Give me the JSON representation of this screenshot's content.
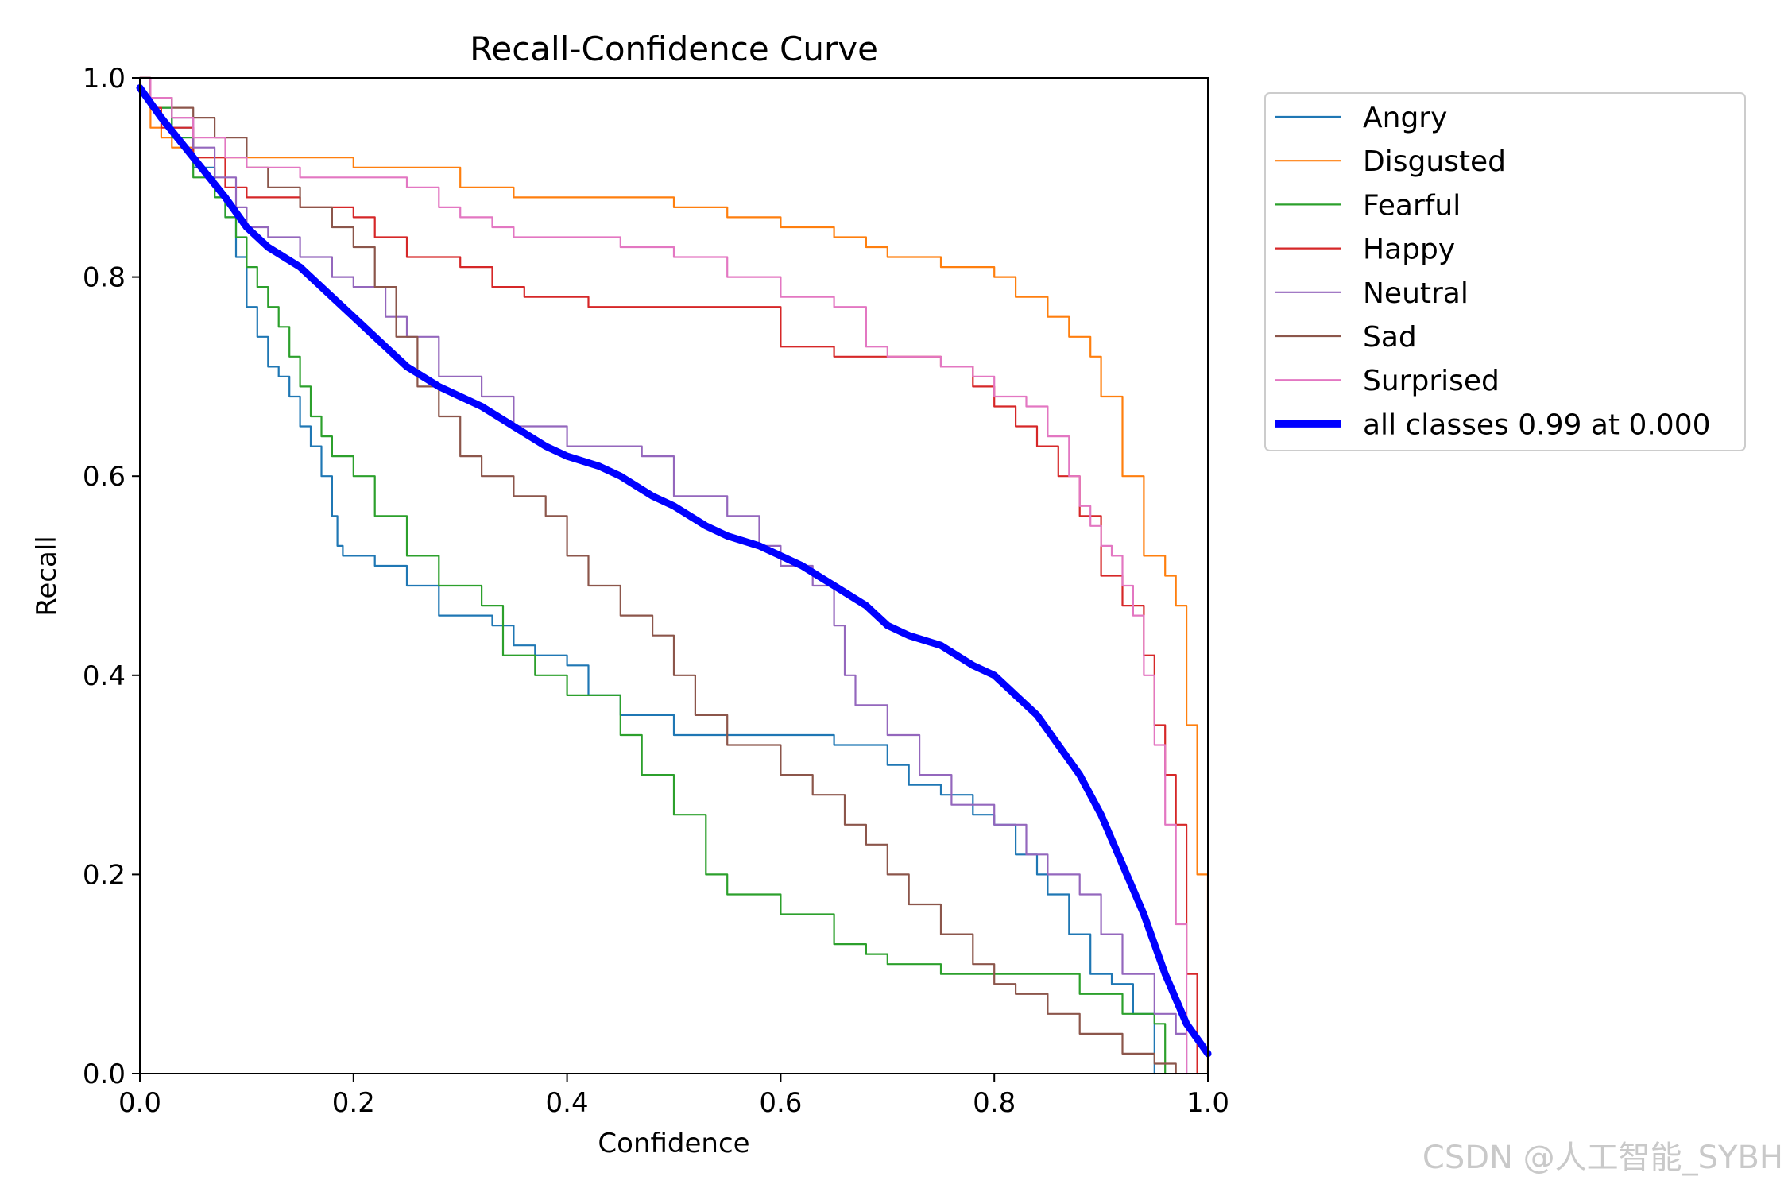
{
  "chart_data": {
    "type": "line",
    "title": "Recall-Confidence Curve",
    "xlabel": "Confidence",
    "ylabel": "Recall",
    "xlim": [
      0.0,
      1.0
    ],
    "ylim": [
      0.0,
      1.0
    ],
    "xticks": [
      "0.0",
      "0.2",
      "0.4",
      "0.6",
      "0.8",
      "1.0"
    ],
    "yticks": [
      "0.0",
      "0.2",
      "0.4",
      "0.6",
      "0.8",
      "1.0"
    ],
    "grid": false,
    "legend_position": "outside-right-top",
    "series": [
      {
        "name": "Angry",
        "color": "#1f77b4",
        "x": [
          0.0,
          0.01,
          0.03,
          0.05,
          0.07,
          0.08,
          0.09,
          0.1,
          0.11,
          0.12,
          0.13,
          0.14,
          0.15,
          0.16,
          0.17,
          0.18,
          0.185,
          0.19,
          0.2,
          0.22,
          0.25,
          0.28,
          0.33,
          0.35,
          0.37,
          0.4,
          0.42,
          0.45,
          0.5,
          0.6,
          0.65,
          0.7,
          0.72,
          0.75,
          0.78,
          0.8,
          0.82,
          0.84,
          0.85,
          0.87,
          0.89,
          0.91,
          0.93,
          0.95
        ],
        "y": [
          1.0,
          0.97,
          0.95,
          0.91,
          0.88,
          0.86,
          0.82,
          0.77,
          0.74,
          0.71,
          0.7,
          0.68,
          0.65,
          0.63,
          0.6,
          0.56,
          0.53,
          0.52,
          0.52,
          0.51,
          0.49,
          0.46,
          0.45,
          0.43,
          0.42,
          0.41,
          0.38,
          0.36,
          0.34,
          0.34,
          0.33,
          0.31,
          0.29,
          0.28,
          0.26,
          0.25,
          0.22,
          0.2,
          0.18,
          0.14,
          0.1,
          0.09,
          0.06,
          0.0
        ]
      },
      {
        "name": "Disgusted",
        "color": "#ff7f0e",
        "x": [
          0.0,
          0.01,
          0.02,
          0.03,
          0.05,
          0.1,
          0.17,
          0.2,
          0.27,
          0.3,
          0.35,
          0.45,
          0.5,
          0.55,
          0.6,
          0.65,
          0.68,
          0.7,
          0.75,
          0.8,
          0.82,
          0.85,
          0.87,
          0.89,
          0.9,
          0.92,
          0.94,
          0.96,
          0.97,
          0.98,
          0.99,
          1.0
        ],
        "y": [
          1.0,
          0.95,
          0.94,
          0.93,
          0.92,
          0.92,
          0.92,
          0.91,
          0.91,
          0.89,
          0.88,
          0.88,
          0.87,
          0.86,
          0.85,
          0.84,
          0.83,
          0.82,
          0.81,
          0.8,
          0.78,
          0.76,
          0.74,
          0.72,
          0.68,
          0.6,
          0.52,
          0.5,
          0.47,
          0.35,
          0.2,
          0.0
        ]
      },
      {
        "name": "Fearful",
        "color": "#2ca02c",
        "x": [
          0.0,
          0.01,
          0.03,
          0.05,
          0.07,
          0.08,
          0.09,
          0.1,
          0.11,
          0.12,
          0.13,
          0.14,
          0.15,
          0.16,
          0.17,
          0.18,
          0.2,
          0.22,
          0.25,
          0.28,
          0.32,
          0.34,
          0.37,
          0.4,
          0.45,
          0.47,
          0.5,
          0.53,
          0.55,
          0.6,
          0.65,
          0.68,
          0.7,
          0.75,
          0.8,
          0.85,
          0.88,
          0.92,
          0.95,
          0.96
        ],
        "y": [
          1.0,
          0.97,
          0.94,
          0.9,
          0.88,
          0.86,
          0.84,
          0.81,
          0.79,
          0.77,
          0.75,
          0.72,
          0.69,
          0.66,
          0.64,
          0.62,
          0.6,
          0.56,
          0.52,
          0.49,
          0.47,
          0.42,
          0.4,
          0.38,
          0.34,
          0.3,
          0.26,
          0.2,
          0.18,
          0.16,
          0.13,
          0.12,
          0.11,
          0.1,
          0.1,
          0.1,
          0.08,
          0.06,
          0.05,
          0.0
        ]
      },
      {
        "name": "Happy",
        "color": "#d62728",
        "x": [
          0.0,
          0.01,
          0.02,
          0.05,
          0.08,
          0.1,
          0.15,
          0.2,
          0.22,
          0.25,
          0.3,
          0.33,
          0.36,
          0.42,
          0.55,
          0.6,
          0.65,
          0.7,
          0.75,
          0.78,
          0.8,
          0.82,
          0.84,
          0.86,
          0.88,
          0.9,
          0.92,
          0.94,
          0.95,
          0.96,
          0.97,
          0.98,
          0.99
        ],
        "y": [
          1.0,
          0.97,
          0.95,
          0.92,
          0.89,
          0.88,
          0.87,
          0.86,
          0.84,
          0.82,
          0.81,
          0.79,
          0.78,
          0.77,
          0.77,
          0.73,
          0.72,
          0.72,
          0.71,
          0.69,
          0.67,
          0.65,
          0.63,
          0.6,
          0.56,
          0.5,
          0.47,
          0.42,
          0.35,
          0.3,
          0.25,
          0.1,
          0.0
        ]
      },
      {
        "name": "Neutral",
        "color": "#9467bd",
        "x": [
          0.0,
          0.01,
          0.03,
          0.05,
          0.07,
          0.09,
          0.1,
          0.12,
          0.15,
          0.18,
          0.2,
          0.23,
          0.25,
          0.28,
          0.32,
          0.35,
          0.4,
          0.47,
          0.5,
          0.55,
          0.58,
          0.6,
          0.63,
          0.65,
          0.66,
          0.67,
          0.7,
          0.73,
          0.76,
          0.8,
          0.83,
          0.85,
          0.88,
          0.9,
          0.92,
          0.95,
          0.97,
          0.98
        ],
        "y": [
          1.0,
          0.98,
          0.96,
          0.93,
          0.9,
          0.87,
          0.85,
          0.84,
          0.82,
          0.8,
          0.79,
          0.76,
          0.74,
          0.7,
          0.68,
          0.65,
          0.63,
          0.62,
          0.58,
          0.56,
          0.53,
          0.51,
          0.49,
          0.45,
          0.4,
          0.37,
          0.34,
          0.3,
          0.27,
          0.25,
          0.22,
          0.2,
          0.18,
          0.14,
          0.1,
          0.06,
          0.04,
          0.0
        ]
      },
      {
        "name": "Sad",
        "color": "#8c564b",
        "x": [
          0.0,
          0.01,
          0.03,
          0.05,
          0.07,
          0.1,
          0.12,
          0.15,
          0.18,
          0.2,
          0.22,
          0.24,
          0.26,
          0.28,
          0.3,
          0.32,
          0.35,
          0.38,
          0.4,
          0.42,
          0.45,
          0.48,
          0.5,
          0.52,
          0.55,
          0.6,
          0.63,
          0.66,
          0.68,
          0.7,
          0.72,
          0.75,
          0.78,
          0.8,
          0.82,
          0.85,
          0.88,
          0.92,
          0.95,
          0.97
        ],
        "y": [
          1.0,
          0.98,
          0.97,
          0.96,
          0.94,
          0.91,
          0.89,
          0.87,
          0.85,
          0.83,
          0.79,
          0.74,
          0.69,
          0.66,
          0.62,
          0.6,
          0.58,
          0.56,
          0.52,
          0.49,
          0.46,
          0.44,
          0.4,
          0.36,
          0.33,
          0.3,
          0.28,
          0.25,
          0.23,
          0.2,
          0.17,
          0.14,
          0.11,
          0.09,
          0.08,
          0.06,
          0.04,
          0.02,
          0.01,
          0.0
        ]
      },
      {
        "name": "Surprised",
        "color": "#e377c2",
        "x": [
          0.0,
          0.01,
          0.03,
          0.05,
          0.08,
          0.1,
          0.15,
          0.2,
          0.25,
          0.28,
          0.3,
          0.33,
          0.35,
          0.4,
          0.45,
          0.5,
          0.55,
          0.6,
          0.65,
          0.68,
          0.7,
          0.75,
          0.78,
          0.8,
          0.83,
          0.85,
          0.87,
          0.88,
          0.89,
          0.9,
          0.91,
          0.92,
          0.93,
          0.94,
          0.95,
          0.96,
          0.97,
          0.98
        ],
        "y": [
          1.0,
          0.98,
          0.96,
          0.94,
          0.92,
          0.91,
          0.9,
          0.9,
          0.89,
          0.87,
          0.86,
          0.85,
          0.84,
          0.84,
          0.83,
          0.82,
          0.8,
          0.78,
          0.77,
          0.73,
          0.72,
          0.71,
          0.7,
          0.68,
          0.67,
          0.64,
          0.6,
          0.57,
          0.55,
          0.53,
          0.52,
          0.49,
          0.46,
          0.4,
          0.33,
          0.25,
          0.15,
          0.0
        ]
      },
      {
        "name": "all classes 0.99 at 0.000",
        "color": "#0000ff",
        "bold": true,
        "x": [
          0.0,
          0.02,
          0.05,
          0.08,
          0.1,
          0.12,
          0.15,
          0.18,
          0.2,
          0.22,
          0.25,
          0.28,
          0.3,
          0.32,
          0.35,
          0.38,
          0.4,
          0.43,
          0.45,
          0.48,
          0.5,
          0.53,
          0.55,
          0.58,
          0.6,
          0.62,
          0.65,
          0.68,
          0.7,
          0.72,
          0.75,
          0.78,
          0.8,
          0.82,
          0.84,
          0.86,
          0.88,
          0.9,
          0.92,
          0.94,
          0.96,
          0.98,
          1.0
        ],
        "y": [
          0.99,
          0.96,
          0.92,
          0.88,
          0.85,
          0.83,
          0.81,
          0.78,
          0.76,
          0.74,
          0.71,
          0.69,
          0.68,
          0.67,
          0.65,
          0.63,
          0.62,
          0.61,
          0.6,
          0.58,
          0.57,
          0.55,
          0.54,
          0.53,
          0.52,
          0.51,
          0.49,
          0.47,
          0.45,
          0.44,
          0.43,
          0.41,
          0.4,
          0.38,
          0.36,
          0.33,
          0.3,
          0.26,
          0.21,
          0.16,
          0.1,
          0.05,
          0.02
        ]
      }
    ]
  },
  "watermark": "CSDN @人工智能_SYBH"
}
